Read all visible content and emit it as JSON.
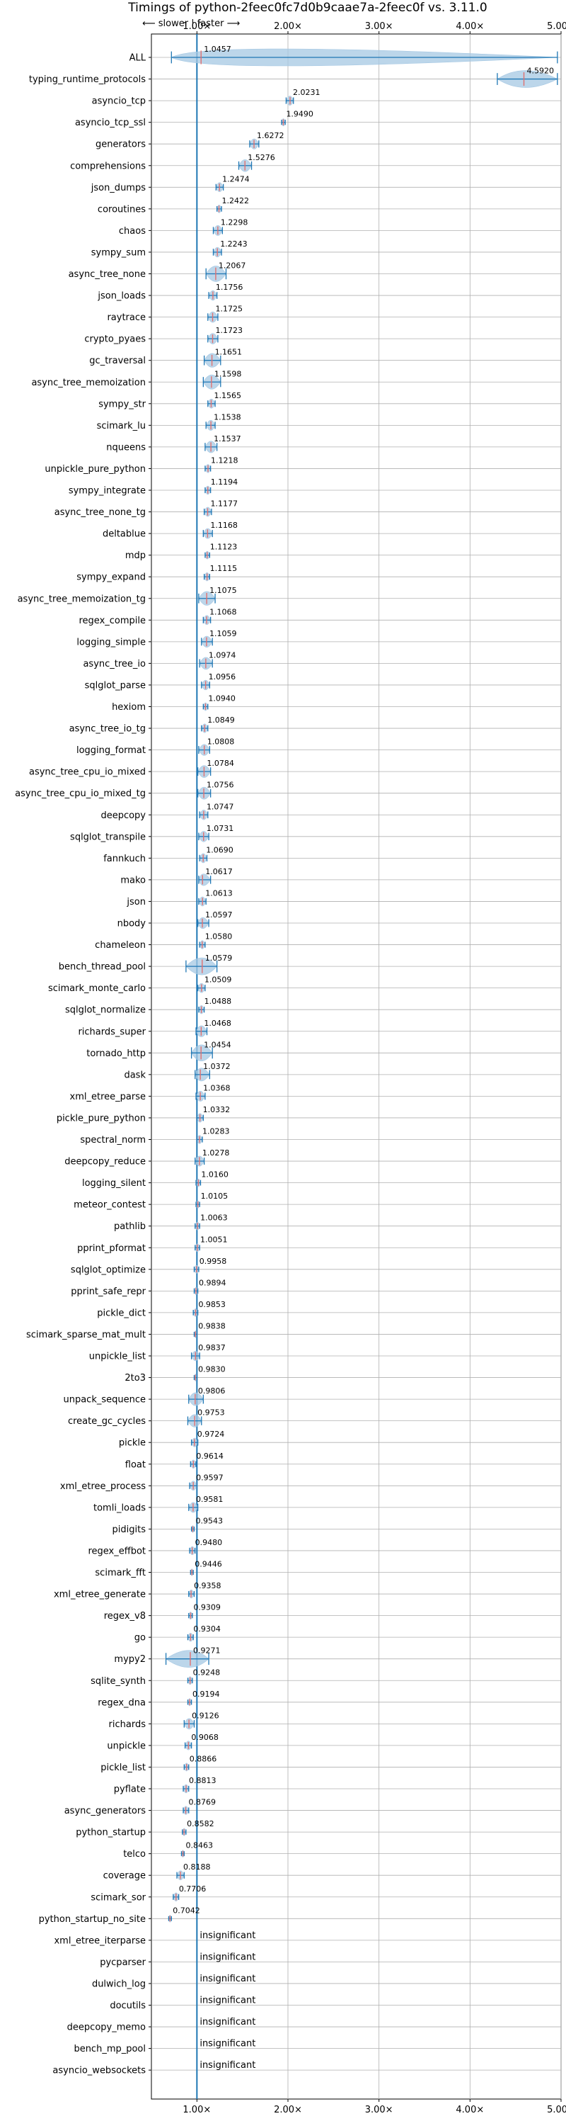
{
  "chart_data": {
    "type": "violin",
    "title": "Timings of python-2feec0fc7d0b9caae7a-2feec0f vs. 3.11.0",
    "direction_note": "⟵ slower | faster ⟶",
    "xlim": [
      0.5,
      5.0
    ],
    "xticks": [
      1,
      2,
      3,
      4,
      5
    ],
    "xtick_labels": [
      "1.00×",
      "2.00×",
      "3.00×",
      "4.00×",
      "5.00×"
    ],
    "grid": true,
    "reference_line": 1.0,
    "colors": {
      "body": "#a6c8e3",
      "line": "#1f77b4",
      "median": "#e07070",
      "grid": "#b0b0b0"
    },
    "benchmarks": [
      {
        "name": "ALL",
        "value": 1.0457,
        "label": "1.0457",
        "min": 0.72,
        "max": 4.96
      },
      {
        "name": "typing_runtime_protocols",
        "value": 4.592,
        "label": "4.5920",
        "min": 4.3,
        "max": 4.96
      },
      {
        "name": "asyncio_tcp",
        "value": 2.0231,
        "label": "2.0231",
        "min": 1.98,
        "max": 2.06
      },
      {
        "name": "asyncio_tcp_ssl",
        "value": 1.949,
        "label": "1.9490",
        "min": 1.93,
        "max": 1.97
      },
      {
        "name": "generators",
        "value": 1.6272,
        "label": "1.6272",
        "min": 1.58,
        "max": 1.68
      },
      {
        "name": "comprehensions",
        "value": 1.5276,
        "label": "1.5276",
        "min": 1.46,
        "max": 1.6
      },
      {
        "name": "json_dumps",
        "value": 1.2474,
        "label": "1.2474",
        "min": 1.21,
        "max": 1.29
      },
      {
        "name": "coroutines",
        "value": 1.2422,
        "label": "1.2422",
        "min": 1.22,
        "max": 1.27
      },
      {
        "name": "chaos",
        "value": 1.2298,
        "label": "1.2298",
        "min": 1.18,
        "max": 1.28
      },
      {
        "name": "sympy_sum",
        "value": 1.2243,
        "label": "1.2243",
        "min": 1.18,
        "max": 1.27
      },
      {
        "name": "async_tree_none",
        "value": 1.2067,
        "label": "1.2067",
        "min": 1.1,
        "max": 1.32
      },
      {
        "name": "json_loads",
        "value": 1.1756,
        "label": "1.1756",
        "min": 1.13,
        "max": 1.22
      },
      {
        "name": "raytrace",
        "value": 1.1725,
        "label": "1.1725",
        "min": 1.12,
        "max": 1.23
      },
      {
        "name": "crypto_pyaes",
        "value": 1.1723,
        "label": "1.1723",
        "min": 1.12,
        "max": 1.23
      },
      {
        "name": "gc_traversal",
        "value": 1.1651,
        "label": "1.1651",
        "min": 1.08,
        "max": 1.26
      },
      {
        "name": "async_tree_memoization",
        "value": 1.1598,
        "label": "1.1598",
        "min": 1.07,
        "max": 1.26
      },
      {
        "name": "sympy_str",
        "value": 1.1565,
        "label": "1.1565",
        "min": 1.12,
        "max": 1.2
      },
      {
        "name": "scimark_lu",
        "value": 1.1538,
        "label": "1.1538",
        "min": 1.1,
        "max": 1.2
      },
      {
        "name": "nqueens",
        "value": 1.1537,
        "label": "1.1537",
        "min": 1.09,
        "max": 1.22
      },
      {
        "name": "unpickle_pure_python",
        "value": 1.1218,
        "label": "1.1218",
        "min": 1.09,
        "max": 1.15
      },
      {
        "name": "sympy_integrate",
        "value": 1.1194,
        "label": "1.1194",
        "min": 1.09,
        "max": 1.15
      },
      {
        "name": "async_tree_none_tg",
        "value": 1.1177,
        "label": "1.1177",
        "min": 1.08,
        "max": 1.16
      },
      {
        "name": "deltablue",
        "value": 1.1168,
        "label": "1.1168",
        "min": 1.07,
        "max": 1.17
      },
      {
        "name": "mdp",
        "value": 1.1123,
        "label": "1.1123",
        "min": 1.09,
        "max": 1.14
      },
      {
        "name": "sympy_expand",
        "value": 1.1115,
        "label": "1.1115",
        "min": 1.08,
        "max": 1.14
      },
      {
        "name": "async_tree_memoization_tg",
        "value": 1.1075,
        "label": "1.1075",
        "min": 1.02,
        "max": 1.2
      },
      {
        "name": "regex_compile",
        "value": 1.1068,
        "label": "1.1068",
        "min": 1.07,
        "max": 1.15
      },
      {
        "name": "logging_simple",
        "value": 1.1059,
        "label": "1.1059",
        "min": 1.05,
        "max": 1.17
      },
      {
        "name": "async_tree_io",
        "value": 1.0974,
        "label": "1.0974",
        "min": 1.03,
        "max": 1.17
      },
      {
        "name": "sqlglot_parse",
        "value": 1.0956,
        "label": "1.0956",
        "min": 1.05,
        "max": 1.14
      },
      {
        "name": "hexiom",
        "value": 1.094,
        "label": "1.0940",
        "min": 1.07,
        "max": 1.12
      },
      {
        "name": "async_tree_io_tg",
        "value": 1.0849,
        "label": "1.0849",
        "min": 1.05,
        "max": 1.12
      },
      {
        "name": "logging_format",
        "value": 1.0808,
        "label": "1.0808",
        "min": 1.02,
        "max": 1.14
      },
      {
        "name": "async_tree_cpu_io_mixed",
        "value": 1.0784,
        "label": "1.0784",
        "min": 1.01,
        "max": 1.15
      },
      {
        "name": "async_tree_cpu_io_mixed_tg",
        "value": 1.0756,
        "label": "1.0756",
        "min": 1.01,
        "max": 1.15
      },
      {
        "name": "deepcopy",
        "value": 1.0747,
        "label": "1.0747",
        "min": 1.03,
        "max": 1.12
      },
      {
        "name": "sqlglot_transpile",
        "value": 1.0731,
        "label": "1.0731",
        "min": 1.02,
        "max": 1.13
      },
      {
        "name": "fannkuch",
        "value": 1.069,
        "label": "1.0690",
        "min": 1.03,
        "max": 1.11
      },
      {
        "name": "mako",
        "value": 1.0617,
        "label": "1.0617",
        "min": 1.02,
        "max": 1.15
      },
      {
        "name": "json",
        "value": 1.0613,
        "label": "1.0613",
        "min": 1.02,
        "max": 1.1
      },
      {
        "name": "nbody",
        "value": 1.0597,
        "label": "1.0597",
        "min": 1.01,
        "max": 1.13
      },
      {
        "name": "chameleon",
        "value": 1.058,
        "label": "1.0580",
        "min": 1.03,
        "max": 1.09
      },
      {
        "name": "bench_thread_pool",
        "value": 1.0579,
        "label": "1.0579",
        "min": 0.88,
        "max": 1.22
      },
      {
        "name": "scimark_monte_carlo",
        "value": 1.0509,
        "label": "1.0509",
        "min": 1.01,
        "max": 1.09
      },
      {
        "name": "sqlglot_normalize",
        "value": 1.0488,
        "label": "1.0488",
        "min": 1.02,
        "max": 1.08
      },
      {
        "name": "richards_super",
        "value": 1.0468,
        "label": "1.0468",
        "min": 0.99,
        "max": 1.11
      },
      {
        "name": "tornado_http",
        "value": 1.0454,
        "label": "1.0454",
        "min": 0.94,
        "max": 1.17
      },
      {
        "name": "dask",
        "value": 1.0372,
        "label": "1.0372",
        "min": 0.98,
        "max": 1.14
      },
      {
        "name": "xml_etree_parse",
        "value": 1.0368,
        "label": "1.0368",
        "min": 0.99,
        "max": 1.09
      },
      {
        "name": "pickle_pure_python",
        "value": 1.0332,
        "label": "1.0332",
        "min": 1.0,
        "max": 1.07
      },
      {
        "name": "spectral_norm",
        "value": 1.0283,
        "label": "1.0283",
        "min": 1.0,
        "max": 1.06
      },
      {
        "name": "deepcopy_reduce",
        "value": 1.0278,
        "label": "1.0278",
        "min": 0.98,
        "max": 1.08
      },
      {
        "name": "logging_silent",
        "value": 1.016,
        "label": "1.0160",
        "min": 0.99,
        "max": 1.04
      },
      {
        "name": "meteor_contest",
        "value": 1.0105,
        "label": "1.0105",
        "min": 0.99,
        "max": 1.03
      },
      {
        "name": "pathlib",
        "value": 1.0063,
        "label": "1.0063",
        "min": 0.98,
        "max": 1.03
      },
      {
        "name": "pprint_pformat",
        "value": 1.0051,
        "label": "1.0051",
        "min": 0.98,
        "max": 1.03
      },
      {
        "name": "sqlglot_optimize",
        "value": 0.9958,
        "label": "0.9958",
        "min": 0.97,
        "max": 1.02
      },
      {
        "name": "pprint_safe_repr",
        "value": 0.9894,
        "label": "0.9894",
        "min": 0.97,
        "max": 1.01
      },
      {
        "name": "pickle_dict",
        "value": 0.9853,
        "label": "0.9853",
        "min": 0.96,
        "max": 1.01
      },
      {
        "name": "scimark_sparse_mat_mult",
        "value": 0.9838,
        "label": "0.9838",
        "min": 0.97,
        "max": 1.0
      },
      {
        "name": "unpickle_list",
        "value": 0.9837,
        "label": "0.9837",
        "min": 0.94,
        "max": 1.03
      },
      {
        "name": "2to3",
        "value": 0.983,
        "label": "0.9830",
        "min": 0.97,
        "max": 1.0
      },
      {
        "name": "unpack_sequence",
        "value": 0.9806,
        "label": "0.9806",
        "min": 0.91,
        "max": 1.07
      },
      {
        "name": "create_gc_cycles",
        "value": 0.9753,
        "label": "0.9753",
        "min": 0.9,
        "max": 1.05
      },
      {
        "name": "pickle",
        "value": 0.9724,
        "label": "0.9724",
        "min": 0.94,
        "max": 1.01
      },
      {
        "name": "float",
        "value": 0.9614,
        "label": "0.9614",
        "min": 0.93,
        "max": 0.99
      },
      {
        "name": "xml_etree_process",
        "value": 0.9597,
        "label": "0.9597",
        "min": 0.92,
        "max": 1.0
      },
      {
        "name": "tomli_loads",
        "value": 0.9581,
        "label": "0.9581",
        "min": 0.91,
        "max": 1.01
      },
      {
        "name": "pidigits",
        "value": 0.9543,
        "label": "0.9543",
        "min": 0.94,
        "max": 0.97
      },
      {
        "name": "regex_effbot",
        "value": 0.948,
        "label": "0.9480",
        "min": 0.92,
        "max": 0.98
      },
      {
        "name": "scimark_fft",
        "value": 0.9446,
        "label": "0.9446",
        "min": 0.93,
        "max": 0.96
      },
      {
        "name": "xml_etree_generate",
        "value": 0.9358,
        "label": "0.9358",
        "min": 0.91,
        "max": 0.97
      },
      {
        "name": "regex_v8",
        "value": 0.9309,
        "label": "0.9309",
        "min": 0.91,
        "max": 0.95
      },
      {
        "name": "go",
        "value": 0.9304,
        "label": "0.9304",
        "min": 0.9,
        "max": 0.96
      },
      {
        "name": "mypy2",
        "value": 0.9271,
        "label": "0.9271",
        "min": 0.66,
        "max": 1.13
      },
      {
        "name": "sqlite_synth",
        "value": 0.9248,
        "label": "0.9248",
        "min": 0.9,
        "max": 0.95
      },
      {
        "name": "regex_dna",
        "value": 0.9194,
        "label": "0.9194",
        "min": 0.9,
        "max": 0.94
      },
      {
        "name": "richards",
        "value": 0.9126,
        "label": "0.9126",
        "min": 0.86,
        "max": 0.97
      },
      {
        "name": "unpickle",
        "value": 0.9068,
        "label": "0.9068",
        "min": 0.87,
        "max": 0.94
      },
      {
        "name": "pickle_list",
        "value": 0.8866,
        "label": "0.8866",
        "min": 0.86,
        "max": 0.91
      },
      {
        "name": "pyflate",
        "value": 0.8813,
        "label": "0.8813",
        "min": 0.85,
        "max": 0.91
      },
      {
        "name": "async_generators",
        "value": 0.8769,
        "label": "0.8769",
        "min": 0.85,
        "max": 0.91
      },
      {
        "name": "python_startup",
        "value": 0.8582,
        "label": "0.8582",
        "min": 0.84,
        "max": 0.88
      },
      {
        "name": "telco",
        "value": 0.8463,
        "label": "0.8463",
        "min": 0.83,
        "max": 0.86
      },
      {
        "name": "coverage",
        "value": 0.8188,
        "label": "0.8188",
        "min": 0.78,
        "max": 0.86
      },
      {
        "name": "scimark_sor",
        "value": 0.7706,
        "label": "0.7706",
        "min": 0.74,
        "max": 0.8
      },
      {
        "name": "python_startup_no_site",
        "value": 0.7042,
        "label": "0.7042",
        "min": 0.69,
        "max": 0.72
      },
      {
        "name": "xml_etree_iterparse",
        "value": null,
        "label": "insignificant"
      },
      {
        "name": "pycparser",
        "value": null,
        "label": "insignificant"
      },
      {
        "name": "dulwich_log",
        "value": null,
        "label": "insignificant"
      },
      {
        "name": "docutils",
        "value": null,
        "label": "insignificant"
      },
      {
        "name": "deepcopy_memo",
        "value": null,
        "label": "insignificant"
      },
      {
        "name": "bench_mp_pool",
        "value": null,
        "label": "insignificant"
      },
      {
        "name": "asyncio_websockets",
        "value": null,
        "label": "insignificant"
      }
    ]
  }
}
